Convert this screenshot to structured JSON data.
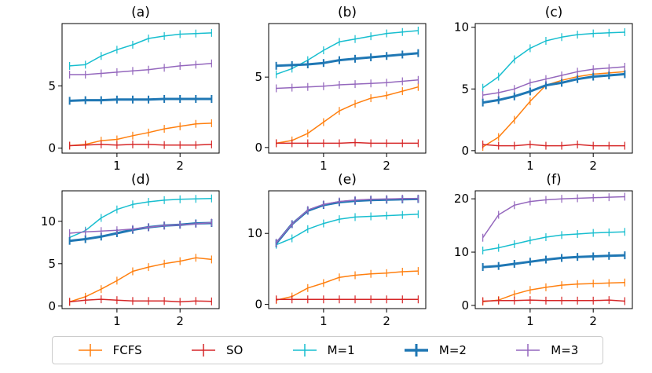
{
  "chart_data": {
    "type": "line",
    "layout": "2x3 grid of subplots",
    "series_styles": [
      {
        "name": "FCFS",
        "color": "#ff7f0e",
        "thick": false
      },
      {
        "name": "SO",
        "color": "#d62728",
        "thick": false
      },
      {
        "name": "M=1",
        "color": "#17becf",
        "thick": false
      },
      {
        "name": "M=2",
        "color": "#1f77b4",
        "thick": true
      },
      {
        "name": "M=3",
        "color": "#9467bd",
        "thick": false
      }
    ],
    "x": [
      0.25,
      0.5,
      0.75,
      1.0,
      1.25,
      1.5,
      1.75,
      2.0,
      2.25,
      2.5
    ],
    "xticks": [
      1,
      2
    ],
    "xlim": [
      0.13,
      2.62
    ],
    "panels": [
      {
        "title": "(a)",
        "ylim": [
          -0.4,
          10.0
        ],
        "yticks": [
          0,
          5
        ],
        "series": [
          {
            "name": "FCFS",
            "values": [
              0.2,
              0.3,
              0.6,
              0.7,
              1.0,
              1.25,
              1.55,
              1.75,
              1.95,
              2.0
            ]
          },
          {
            "name": "SO",
            "values": [
              0.2,
              0.25,
              0.3,
              0.25,
              0.3,
              0.3,
              0.25,
              0.25,
              0.25,
              0.3
            ]
          },
          {
            "name": "M=1",
            "values": [
              6.6,
              6.7,
              7.4,
              7.9,
              8.3,
              8.8,
              9.0,
              9.15,
              9.2,
              9.25
            ]
          },
          {
            "name": "M=2",
            "values": [
              3.8,
              3.85,
              3.85,
              3.9,
              3.9,
              3.9,
              3.95,
              3.95,
              3.95,
              3.95
            ]
          },
          {
            "name": "M=3",
            "values": [
              5.9,
              5.9,
              6.0,
              6.1,
              6.2,
              6.3,
              6.45,
              6.6,
              6.7,
              6.8
            ]
          }
        ]
      },
      {
        "title": "(b)",
        "ylim": [
          -0.4,
          8.8
        ],
        "yticks": [
          0,
          5
        ],
        "series": [
          {
            "name": "FCFS",
            "values": [
              0.3,
              0.5,
              1.0,
              1.8,
              2.6,
              3.1,
              3.5,
              3.7,
              4.0,
              4.3
            ]
          },
          {
            "name": "SO",
            "values": [
              0.3,
              0.3,
              0.3,
              0.3,
              0.3,
              0.35,
              0.3,
              0.3,
              0.3,
              0.3
            ]
          },
          {
            "name": "M=1",
            "values": [
              5.2,
              5.6,
              6.2,
              6.9,
              7.5,
              7.7,
              7.9,
              8.1,
              8.2,
              8.3
            ]
          },
          {
            "name": "M=2",
            "values": [
              5.8,
              5.85,
              5.9,
              6.0,
              6.2,
              6.3,
              6.4,
              6.5,
              6.6,
              6.7
            ]
          },
          {
            "name": "M=3",
            "values": [
              4.2,
              4.25,
              4.3,
              4.35,
              4.45,
              4.5,
              4.55,
              4.6,
              4.7,
              4.8
            ]
          }
        ]
      },
      {
        "title": "(c)",
        "ylim": [
          -0.2,
          10.3
        ],
        "yticks": [
          0,
          5,
          10
        ],
        "series": [
          {
            "name": "FCFS",
            "values": [
              0.3,
              1.1,
              2.5,
              4.0,
              5.3,
              5.7,
              6.0,
              6.2,
              6.3,
              6.4
            ]
          },
          {
            "name": "SO",
            "values": [
              0.5,
              0.4,
              0.4,
              0.5,
              0.4,
              0.4,
              0.5,
              0.4,
              0.4,
              0.4
            ]
          },
          {
            "name": "M=1",
            "values": [
              5.1,
              6.0,
              7.4,
              8.3,
              8.9,
              9.2,
              9.4,
              9.5,
              9.55,
              9.6
            ]
          },
          {
            "name": "M=2",
            "values": [
              3.9,
              4.1,
              4.4,
              4.8,
              5.3,
              5.5,
              5.8,
              6.0,
              6.1,
              6.2
            ]
          },
          {
            "name": "M=3",
            "values": [
              4.5,
              4.7,
              5.0,
              5.5,
              5.8,
              6.1,
              6.4,
              6.6,
              6.7,
              6.8
            ]
          }
        ]
      },
      {
        "title": "(d)",
        "ylim": [
          -0.3,
          13.6
        ],
        "yticks": [
          0,
          5,
          10
        ],
        "series": [
          {
            "name": "FCFS",
            "values": [
              0.5,
              1.1,
              2.0,
              3.0,
              4.1,
              4.6,
              5.0,
              5.3,
              5.7,
              5.5
            ]
          },
          {
            "name": "SO",
            "values": [
              0.5,
              0.7,
              0.8,
              0.7,
              0.6,
              0.6,
              0.6,
              0.5,
              0.6,
              0.55
            ]
          },
          {
            "name": "M=1",
            "values": [
              8.1,
              8.9,
              10.4,
              11.4,
              12.0,
              12.3,
              12.5,
              12.6,
              12.65,
              12.7
            ]
          },
          {
            "name": "M=2",
            "values": [
              7.7,
              7.9,
              8.2,
              8.6,
              9.0,
              9.3,
              9.5,
              9.6,
              9.75,
              9.8
            ]
          },
          {
            "name": "M=3",
            "values": [
              8.6,
              8.75,
              8.85,
              8.95,
              9.1,
              9.3,
              9.5,
              9.6,
              9.7,
              9.85
            ]
          }
        ]
      },
      {
        "title": "(e)",
        "ylim": [
          -0.6,
          16.0
        ],
        "yticks": [
          0,
          10
        ],
        "series": [
          {
            "name": "FCFS",
            "values": [
              0.6,
              1.1,
              2.3,
              3.0,
              3.8,
              4.1,
              4.3,
              4.4,
              4.6,
              4.7
            ]
          },
          {
            "name": "SO",
            "values": [
              0.7,
              0.7,
              0.7,
              0.7,
              0.7,
              0.7,
              0.7,
              0.7,
              0.7,
              0.7
            ]
          },
          {
            "name": "M=1",
            "values": [
              8.4,
              9.3,
              10.6,
              11.4,
              12.0,
              12.3,
              12.4,
              12.5,
              12.6,
              12.7
            ]
          },
          {
            "name": "M=2",
            "values": [
              8.6,
              11.3,
              13.2,
              14.0,
              14.4,
              14.6,
              14.7,
              14.75,
              14.8,
              14.85
            ]
          },
          {
            "name": "M=3",
            "values": [
              8.7,
              11.3,
              13.3,
              14.1,
              14.5,
              14.7,
              14.8,
              14.85,
              14.9,
              14.9
            ]
          }
        ]
      },
      {
        "title": "(f)",
        "ylim": [
          -0.6,
          21.5
        ],
        "yticks": [
          0,
          10,
          20
        ],
        "series": [
          {
            "name": "FCFS",
            "values": [
              0.7,
              1.0,
              2.1,
              2.9,
              3.4,
              3.8,
              4.0,
              4.1,
              4.2,
              4.3
            ]
          },
          {
            "name": "SO",
            "values": [
              0.8,
              0.9,
              0.9,
              1.0,
              0.9,
              0.9,
              0.9,
              0.9,
              1.0,
              0.8
            ]
          },
          {
            "name": "M=1",
            "values": [
              10.3,
              10.8,
              11.5,
              12.2,
              12.8,
              13.2,
              13.4,
              13.6,
              13.7,
              13.8
            ]
          },
          {
            "name": "M=2",
            "values": [
              7.2,
              7.4,
              7.8,
              8.2,
              8.6,
              8.9,
              9.1,
              9.2,
              9.3,
              9.4
            ]
          },
          {
            "name": "M=3",
            "values": [
              12.7,
              17.0,
              18.8,
              19.5,
              19.8,
              20.0,
              20.1,
              20.2,
              20.3,
              20.4
            ]
          }
        ]
      }
    ],
    "legend": {
      "placement": "bottom-center",
      "entries": [
        "FCFS",
        "SO",
        "M=1",
        "M=2",
        "M=3"
      ]
    }
  }
}
